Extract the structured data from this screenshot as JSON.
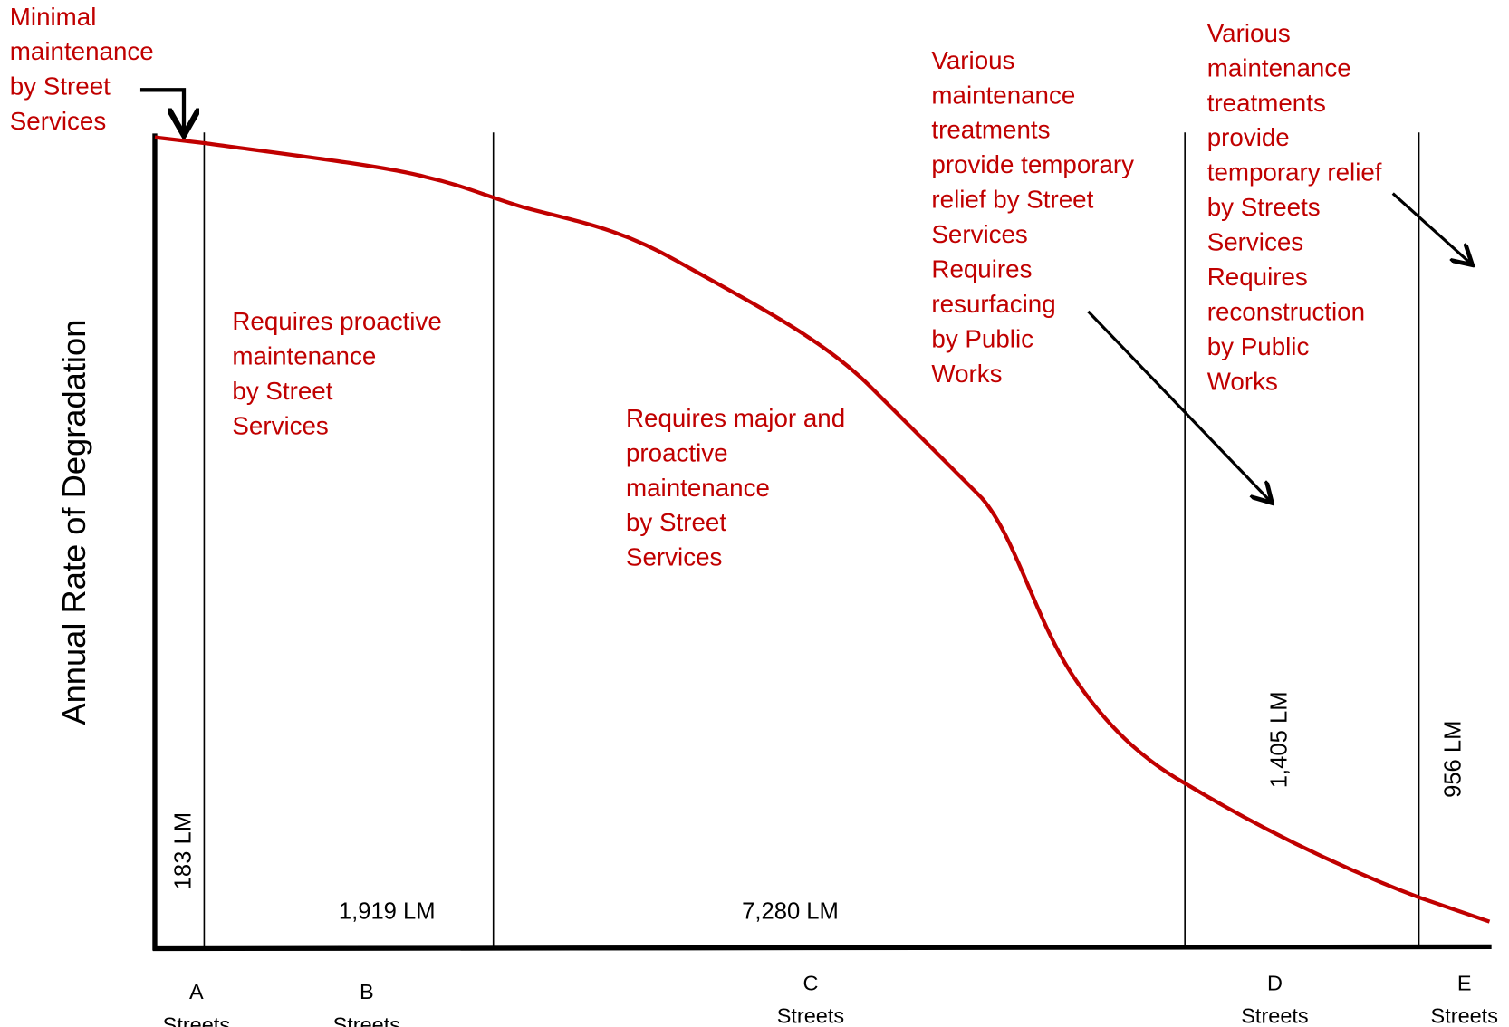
{
  "y_axis_label": "Annual Rate of Degradation",
  "annotations": [
    {
      "lines": [
        "Minimal",
        "maintenance",
        "by Street",
        "Services"
      ]
    },
    {
      "lines": [
        "Requires proactive",
        "maintenance",
        "by Street",
        "Services"
      ]
    },
    {
      "lines": [
        "Requires major and",
        "proactive",
        "maintenance",
        "by Street",
        "Services"
      ]
    },
    {
      "lines": [
        "Various",
        "maintenance",
        "treatments",
        "provide temporary",
        "relief by Street",
        "Services",
        "Requires",
        "resurfacing",
        "by Public",
        "Works"
      ]
    },
    {
      "lines": [
        "Various",
        "maintenance",
        "treatments",
        "provide",
        "temporary relief",
        "by Streets",
        "Services",
        "Requires",
        "reconstruction",
        "by Public",
        "Works"
      ]
    }
  ],
  "sections": [
    {
      "grade": "A",
      "streets": "Streets",
      "length": "183 LM"
    },
    {
      "grade": "B",
      "streets": "Streets",
      "length": "1,919 LM"
    },
    {
      "grade": "C",
      "streets": "Streets",
      "length": "7,280 LM"
    },
    {
      "grade": "D",
      "streets": "Streets",
      "length": "1,405 LM"
    },
    {
      "grade": "E",
      "streets": "Streets",
      "length": "956 LM"
    }
  ]
}
